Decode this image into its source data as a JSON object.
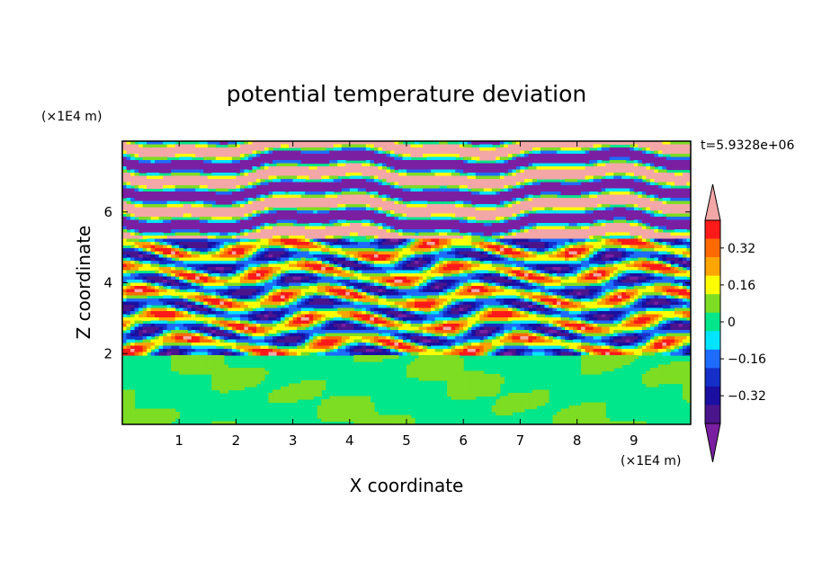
{
  "chart_data": {
    "type": "heatmap",
    "title": "potential temperature deviation",
    "xlabel": "X coordinate",
    "ylabel": "Z coordinate",
    "x_unit_label": "(×1E4 m)",
    "y_unit_label": "(×1E4 m)",
    "time_label": "t=5.9328e+06",
    "xlim": [
      0,
      10
    ],
    "ylim": [
      0,
      8
    ],
    "x_ticks": [
      1,
      2,
      3,
      4,
      5,
      6,
      7,
      8,
      9
    ],
    "y_ticks": [
      2,
      4,
      6
    ],
    "colorbar": {
      "levels": [
        -0.48,
        -0.4,
        -0.32,
        -0.24,
        -0.16,
        -0.08,
        0,
        0.08,
        0.16,
        0.24,
        0.32,
        0.4,
        0.48
      ],
      "tick_labels": [
        "0.32",
        "0.16",
        "0",
        "−0.16",
        "−0.32"
      ],
      "tick_values": [
        0.32,
        0.16,
        0,
        -0.16,
        -0.32
      ],
      "colors": [
        "#7b1fa2",
        "#4a148c",
        "#1a0fa0",
        "#1530c8",
        "#1e6cff",
        "#00e5ff",
        "#00e68a",
        "#7ddd22",
        "#ffff00",
        "#ffa500",
        "#ff6a00",
        "#ff1a1a",
        "#f4a7a7"
      ],
      "extend": "both"
    },
    "structure": {
      "lower_layer_top_z": 2.0,
      "lower_layer_dominant_values": [
        0,
        0.08
      ],
      "upper_layer_bands_above_z": 5.2,
      "upper_layer_dominant_values": [
        -0.48,
        0.48
      ],
      "grid_on": false
    }
  }
}
